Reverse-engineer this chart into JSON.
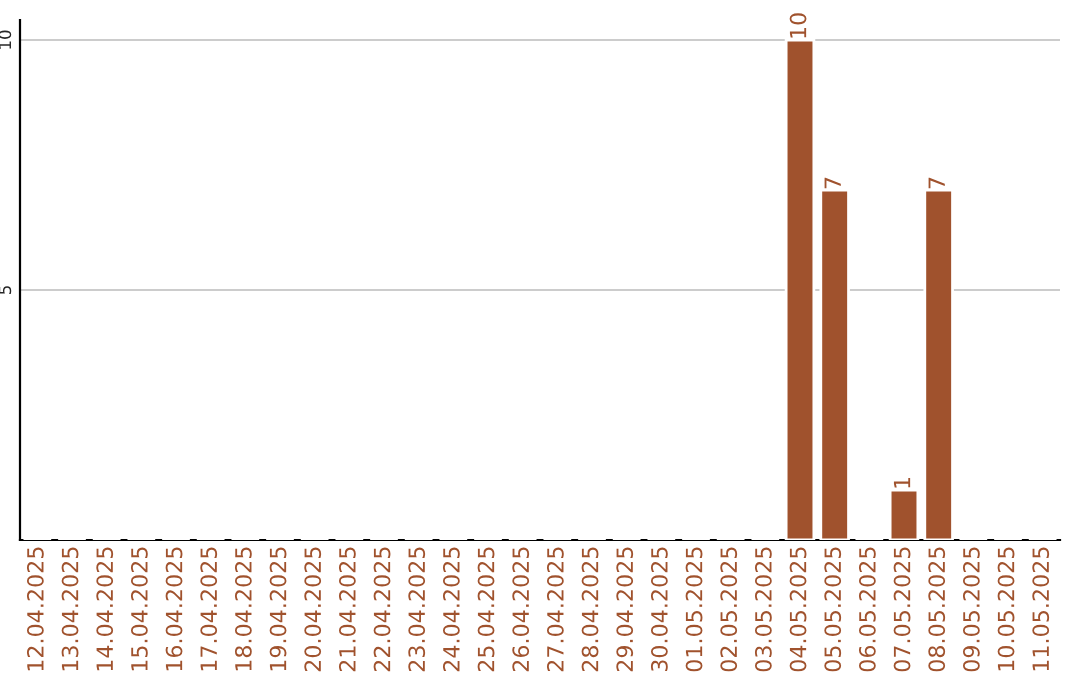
{
  "chart_data": {
    "type": "bar",
    "categories": [
      "12.04.2025",
      "13.04.2025",
      "14.04.2025",
      "15.04.2025",
      "16.04.2025",
      "17.04.2025",
      "18.04.2025",
      "19.04.2025",
      "20.04.2025",
      "21.04.2025",
      "22.04.2025",
      "23.04.2025",
      "24.04.2025",
      "25.04.2025",
      "26.04.2025",
      "27.04.2025",
      "28.04.2025",
      "29.04.2025",
      "30.04.2025",
      "01.05.2025",
      "02.05.2025",
      "03.05.2025",
      "04.05.2025",
      "05.05.2025",
      "06.05.2025",
      "07.05.2025",
      "08.05.2025",
      "09.05.2025",
      "10.05.2025",
      "11.05.2025"
    ],
    "values": [
      null,
      null,
      null,
      null,
      null,
      null,
      null,
      null,
      null,
      null,
      null,
      null,
      null,
      null,
      null,
      null,
      null,
      null,
      null,
      null,
      null,
      null,
      10,
      7,
      null,
      1,
      7,
      null,
      null,
      null
    ],
    "color": "#a0522d",
    "ylim": [
      0,
      10.4
    ],
    "yticks": [
      5,
      10
    ],
    "grid": "y",
    "data_labels": true
  }
}
